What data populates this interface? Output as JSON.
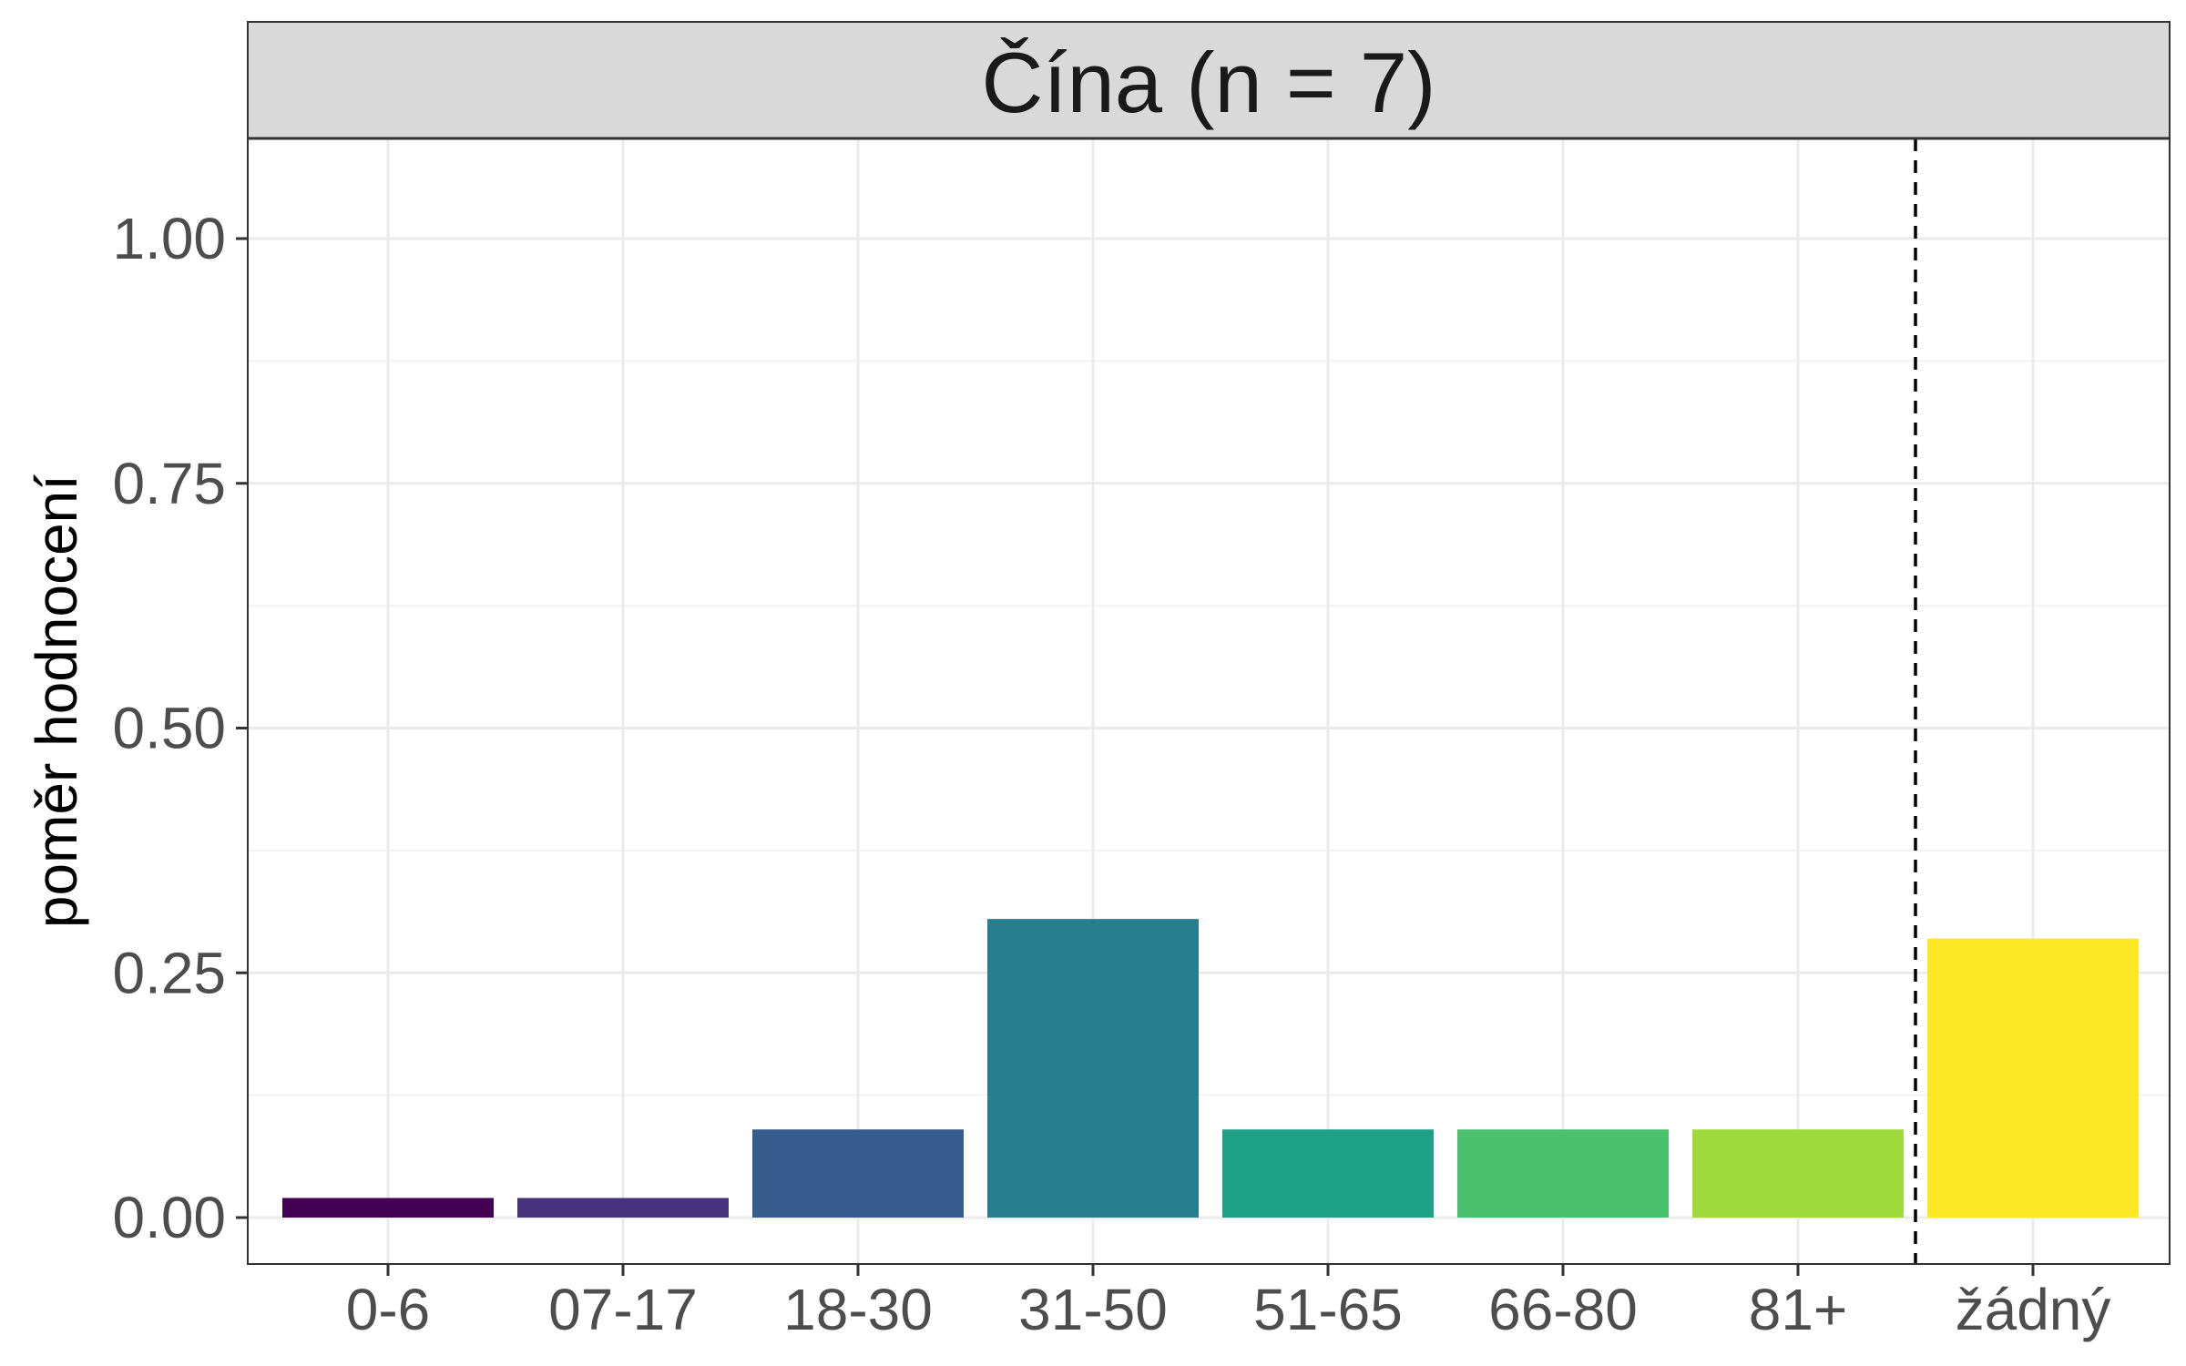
{
  "chart_data": {
    "type": "bar",
    "facet_title": "Čína (n = 7)",
    "categories": [
      "0-6",
      "07-17",
      "18-30",
      "31-50",
      "51-65",
      "66-80",
      "81+",
      "žádný"
    ],
    "values": [
      0.02,
      0.02,
      0.09,
      0.305,
      0.09,
      0.09,
      0.09,
      0.285
    ],
    "colors": [
      "#440154",
      "#46337E",
      "#365C8D",
      "#277F8E",
      "#1FA187",
      "#4AC16D",
      "#9FDA3A",
      "#FDE725"
    ],
    "xlabel": "",
    "ylabel": "poměr hodnocení",
    "ylim": [
      -0.05,
      1.1
    ],
    "yticks": [
      0.0,
      0.25,
      0.5,
      0.75,
      1.0
    ],
    "ytick_labels": [
      "0.00",
      "0.25",
      "0.50",
      "0.75",
      "1.00"
    ],
    "minor_yticks": [
      0.125,
      0.375,
      0.625,
      0.875
    ],
    "grid": true,
    "reference_line": {
      "between": [
        "81+",
        "žádný"
      ],
      "style": "dashed",
      "color": "#000000"
    },
    "theme": {
      "panel_border": "#333333",
      "grid_color": "#ebebeb",
      "strip_fill": "#d9d9d9"
    }
  }
}
